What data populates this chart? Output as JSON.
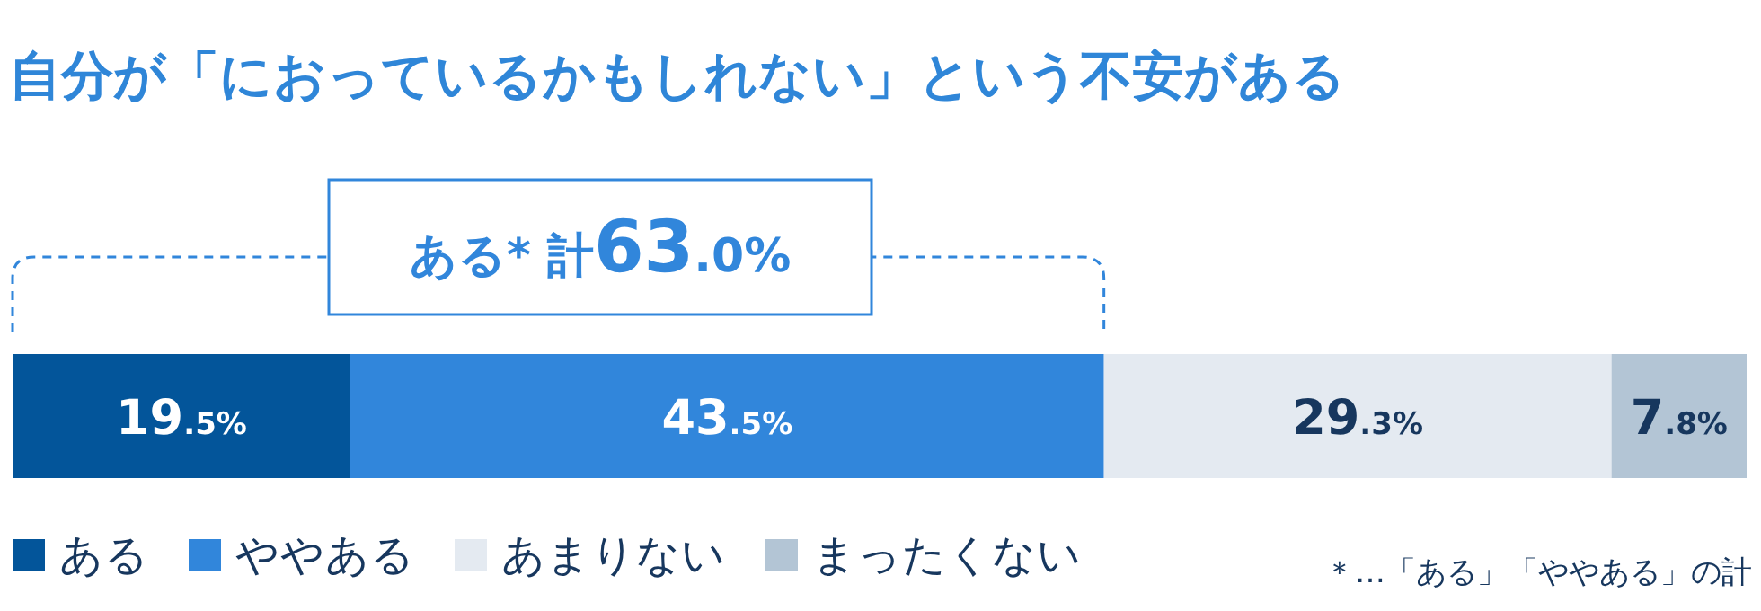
{
  "chart_data": {
    "type": "bar",
    "orientation": "horizontal",
    "stacked": true,
    "title": "自分が「におっているかもしれない」という不安がある",
    "categories": [
      null
    ],
    "series": [
      {
        "name": "ある",
        "color": "#03559a",
        "values": [
          19.5
        ],
        "value_labels": [
          "19.5%"
        ]
      },
      {
        "name": "ややある",
        "color": "#3186db",
        "values": [
          43.5
        ],
        "value_labels": [
          "43.5%"
        ]
      },
      {
        "name": "あまりない",
        "color": "#e4eaf1",
        "values": [
          29.3
        ],
        "value_labels": [
          "29.3%"
        ]
      },
      {
        "name": "まったくない",
        "color": "#b3c5d5",
        "values": [
          7.8
        ],
        "value_labels": [
          "7.8%"
        ]
      }
    ],
    "annotations": [
      "ある* 計63.0%",
      "＊…「ある」「ややある」の計"
    ],
    "legend": "bottom"
  }
}
